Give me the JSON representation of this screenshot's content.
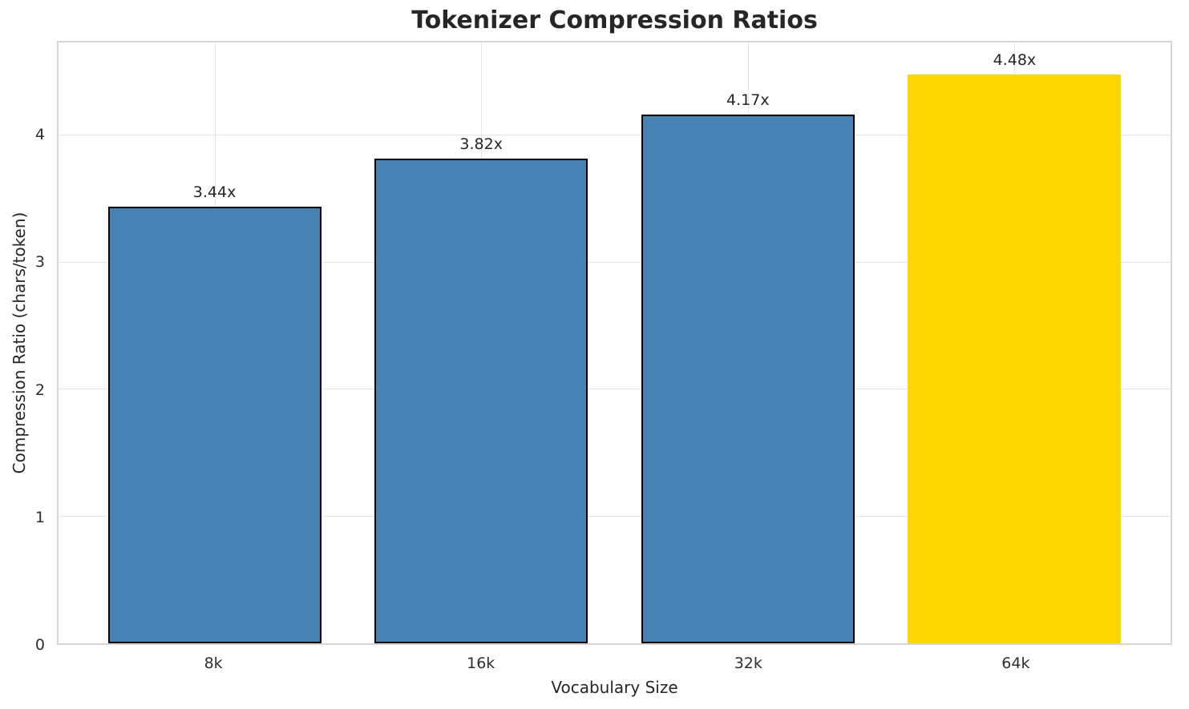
{
  "chart_data": {
    "type": "bar",
    "title": "Tokenizer Compression Ratios",
    "xlabel": "Vocabulary Size",
    "ylabel": "Compression Ratio (chars/token)",
    "categories": [
      "8k",
      "16k",
      "32k",
      "64k"
    ],
    "values": [
      3.44,
      3.82,
      4.17,
      4.48
    ],
    "bar_labels": [
      "3.44x",
      "3.82x",
      "4.17x",
      "4.48x"
    ],
    "ytick_labels": [
      "0",
      "1",
      "2",
      "3",
      "4"
    ],
    "ytick_values": [
      0,
      1,
      2,
      3,
      4
    ],
    "ylim": [
      0,
      4.735
    ],
    "x_range": [
      -0.585,
      3.585
    ],
    "bar_width_units": 0.8,
    "grid": true,
    "legend_position": "none",
    "highlight_index": 3,
    "bar_colors": [
      "#4682B4",
      "#4682B4",
      "#4682B4",
      "#FFD700"
    ],
    "bar_has_edge": [
      true,
      true,
      true,
      false
    ],
    "colors": {
      "bar_default": "#4682B4",
      "bar_highlight": "#FFD700",
      "bar_edge": "#000000",
      "grid": "#e4e4e4",
      "spine": "#d6d6d6",
      "text": "#262626"
    }
  }
}
